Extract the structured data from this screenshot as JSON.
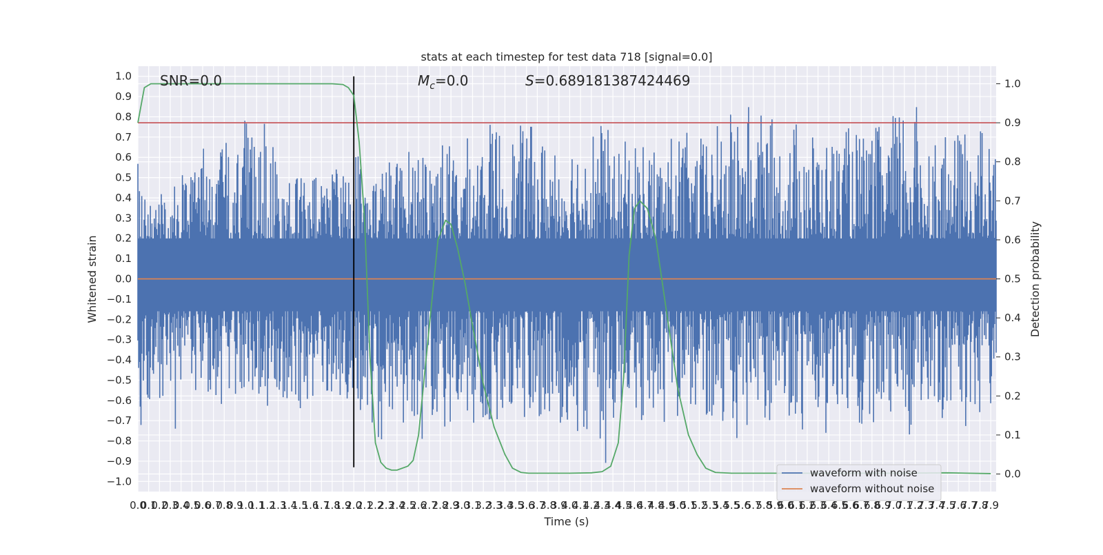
{
  "chart_data": {
    "type": "line",
    "title": "stats at each timestep for test data 718 [signal=0.0]",
    "xlabel": "Time (s)",
    "ylabel": "Whitened strain",
    "y2label": "Detection probability",
    "xlim": [
      0,
      7.95
    ],
    "ylim": [
      -1.05,
      1.05
    ],
    "y2lim": [
      -0.045,
      1.045
    ],
    "x_ticks": [
      "0.0",
      "0.1",
      "0.2",
      "0.3",
      "0.4",
      "0.5",
      "0.6",
      "0.7",
      "0.8",
      "0.9",
      "1.0",
      "1.1",
      "1.2",
      "1.3",
      "1.4",
      "1.5",
      "1.6",
      "1.7",
      "1.8",
      "1.9",
      "2.0",
      "2.1",
      "2.2",
      "2.3",
      "2.4",
      "2.5",
      "2.6",
      "2.7",
      "2.8",
      "2.9",
      "3.0",
      "3.1",
      "3.2",
      "3.3",
      "3.4",
      "3.5",
      "3.6",
      "3.7",
      "3.8",
      "3.9",
      "4.0",
      "4.1",
      "4.2",
      "4.3",
      "4.4",
      "4.5",
      "4.6",
      "4.7",
      "4.8",
      "4.9",
      "5.0",
      "5.1",
      "5.2",
      "5.3",
      "5.4",
      "5.5",
      "5.6",
      "5.7",
      "5.8",
      "5.9",
      "6.0",
      "6.1",
      "6.2",
      "6.3",
      "6.4",
      "6.5",
      "6.6",
      "6.7",
      "6.8",
      "6.9",
      "7.0",
      "7.1",
      "7.2",
      "7.3",
      "7.4",
      "7.5",
      "7.6",
      "7.7",
      "7.8",
      "7.9"
    ],
    "y_ticks": [
      "−1.0",
      "−0.9",
      "−0.8",
      "−0.7",
      "−0.6",
      "−0.5",
      "−0.4",
      "−0.3",
      "−0.2",
      "−0.1",
      "0.0",
      "0.1",
      "0.2",
      "0.3",
      "0.4",
      "0.5",
      "0.6",
      "0.7",
      "0.8",
      "0.9",
      "1.0"
    ],
    "y2_ticks": [
      "0.0",
      "0.1",
      "0.2",
      "0.3",
      "0.4",
      "0.5",
      "0.6",
      "0.7",
      "0.8",
      "0.9",
      "1.0"
    ],
    "annotations": [
      {
        "text": "SNR=0.0"
      },
      {
        "prefix": "M",
        "sub": "c",
        "suffix": "=0.0"
      },
      {
        "prefix": "S",
        "suffix": "=0.689181387424469"
      }
    ],
    "legend": {
      "placement": "lower-right",
      "entries": [
        "waveform with noise",
        "waveform without noise"
      ]
    },
    "series": [
      {
        "name": "waveform with noise",
        "axis": "left",
        "color": "#4c72b0",
        "style": "noise",
        "envelope_samples": [
          0.6,
          0.35,
          0.55,
          0.45,
          0.6,
          0.5,
          0.65,
          0.55,
          0.7,
          0.6,
          0.88,
          0.6,
          0.92,
          0.55,
          0.6,
          0.5,
          0.55,
          0.5,
          0.6,
          0.55,
          0.7,
          0.5,
          0.55,
          0.6,
          0.6,
          0.65,
          0.7,
          0.65,
          0.72,
          0.65,
          0.7,
          0.7,
          0.75,
          0.8,
          0.7,
          0.75,
          0.78,
          0.7,
          0.7,
          0.7,
          0.72,
          0.72,
          0.78,
          0.8,
          0.6,
          0.7,
          0.7,
          0.7,
          0.65,
          0.7,
          0.75,
          0.7,
          0.7,
          0.75,
          0.8,
          0.85,
          0.9,
          0.8,
          0.85,
          0.7,
          0.7,
          0.88,
          0.75,
          0.7,
          0.7,
          0.75,
          0.75,
          0.7,
          0.75,
          0.8,
          0.85,
          1.0,
          0.8,
          0.75,
          0.7,
          0.7,
          0.75,
          0.82,
          0.7,
          0.65
        ],
        "min_envelope_samples": [
          -0.78,
          -0.6,
          -0.65,
          -0.7,
          -0.87,
          -0.6,
          -0.65,
          -0.7,
          -0.6,
          -0.62,
          -0.65,
          -0.6,
          -0.65,
          -0.6,
          -0.62,
          -0.65,
          -0.6,
          -0.55,
          -0.6,
          -0.65,
          -0.7,
          -0.75,
          -0.8,
          -0.9,
          -0.7,
          -0.75,
          -0.8,
          -0.82,
          -0.75,
          -0.7,
          -0.7,
          -0.72,
          -0.75,
          -0.7,
          -0.7,
          -0.7,
          -0.72,
          -0.75,
          -0.7,
          -0.72,
          -0.75,
          -0.8,
          -0.88,
          -0.93,
          -0.7,
          -0.65,
          -0.7,
          -0.7,
          -0.72,
          -0.7,
          -0.75,
          -0.7,
          -0.72,
          -0.7,
          -0.75,
          -0.83,
          -0.75,
          -0.7,
          -0.7,
          -0.7,
          -0.72,
          -0.75,
          -0.72,
          -0.79,
          -0.7,
          -0.72,
          -0.7,
          -0.75,
          -0.72,
          -0.7,
          -0.7,
          -0.77,
          -0.7,
          -0.72,
          -0.75,
          -0.7,
          -0.82,
          -0.7,
          -0.65,
          -0.6
        ]
      },
      {
        "name": "waveform without noise",
        "axis": "left",
        "color": "#dd8452",
        "x": [
          0,
          7.95
        ],
        "y": [
          0.0,
          0.0
        ]
      },
      {
        "name": "",
        "axis": "right",
        "color": "#55a868",
        "x": [
          0.0,
          0.06,
          0.12,
          0.25,
          0.5,
          1.0,
          1.5,
          1.8,
          1.9,
          1.95,
          2.0,
          2.05,
          2.1,
          2.15,
          2.2,
          2.25,
          2.3,
          2.35,
          2.4,
          2.5,
          2.55,
          2.6,
          2.7,
          2.78,
          2.85,
          2.9,
          2.96,
          3.03,
          3.1,
          3.2,
          3.3,
          3.4,
          3.47,
          3.55,
          3.62,
          3.7,
          3.8,
          4.0,
          4.2,
          4.3,
          4.38,
          4.45,
          4.5,
          4.55,
          4.6,
          4.65,
          4.72,
          4.8,
          4.9,
          5.0,
          5.1,
          5.18,
          5.26,
          5.35,
          5.5,
          6.0,
          6.5,
          7.0,
          7.5,
          7.9
        ],
        "y": [
          0.9,
          0.99,
          1.0,
          1.0,
          1.0,
          1.0,
          1.0,
          1.0,
          0.998,
          0.99,
          0.97,
          0.85,
          0.65,
          0.3,
          0.08,
          0.03,
          0.015,
          0.01,
          0.01,
          0.02,
          0.035,
          0.1,
          0.38,
          0.6,
          0.65,
          0.64,
          0.58,
          0.49,
          0.38,
          0.23,
          0.12,
          0.05,
          0.015,
          0.004,
          0.002,
          0.002,
          0.002,
          0.002,
          0.003,
          0.006,
          0.02,
          0.08,
          0.25,
          0.56,
          0.68,
          0.7,
          0.68,
          0.6,
          0.41,
          0.22,
          0.1,
          0.05,
          0.015,
          0.004,
          0.002,
          0.002,
          0.002,
          0.002,
          0.003,
          0.001
        ]
      },
      {
        "name": "",
        "axis": "right",
        "color": "#c44e52",
        "x": [
          0,
          7.95
        ],
        "y": [
          0.9,
          0.9
        ]
      }
    ],
    "vline": {
      "x": 2.0,
      "ymin": -0.93,
      "ymax": 1.0,
      "color": "#000000"
    }
  }
}
